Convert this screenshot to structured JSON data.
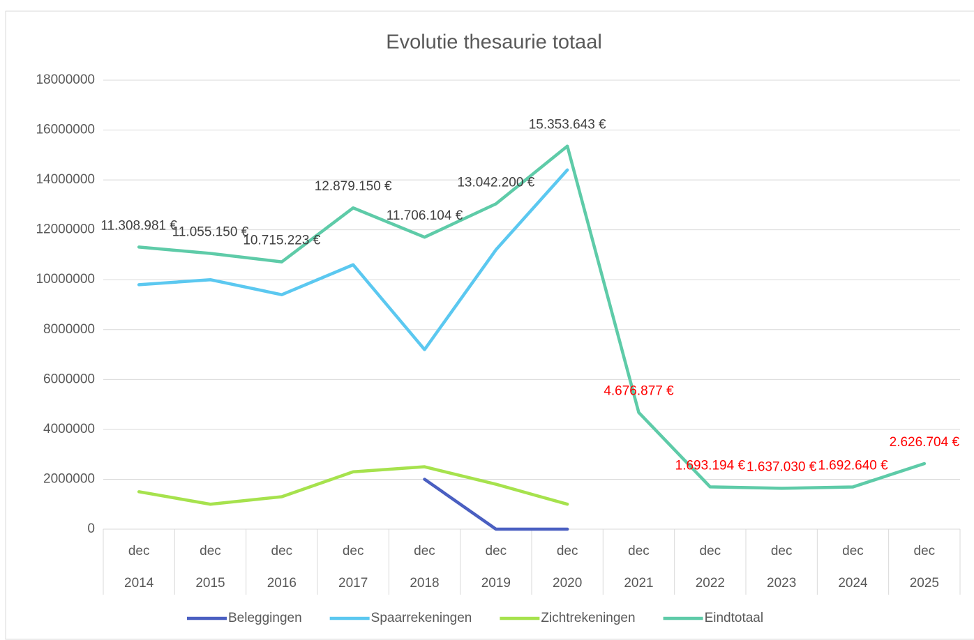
{
  "chart_data": {
    "type": "line",
    "title": "Evolutie thesaurie totaal",
    "categories": [
      [
        "dec",
        "2014"
      ],
      [
        "dec",
        "2015"
      ],
      [
        "dec",
        "2016"
      ],
      [
        "dec",
        "2017"
      ],
      [
        "dec",
        "2018"
      ],
      [
        "dec",
        "2019"
      ],
      [
        "dec",
        "2020"
      ],
      [
        "dec",
        "2021"
      ],
      [
        "dec",
        "2022"
      ],
      [
        "dec",
        "2023"
      ],
      [
        "dec",
        "2024"
      ],
      [
        "dec",
        "2025"
      ]
    ],
    "series": [
      {
        "name": "Beleggingen",
        "color": "#4a5fc1",
        "values": [
          null,
          null,
          null,
          null,
          2000000,
          0,
          0,
          null,
          null,
          null,
          null,
          null
        ]
      },
      {
        "name": "Spaarrekeningen",
        "color": "#5bc8f0",
        "values": [
          9800000,
          10000000,
          9400000,
          10600000,
          7200000,
          11200000,
          14400000,
          null,
          null,
          null,
          null,
          null
        ]
      },
      {
        "name": "Zichtrekeningen",
        "color": "#a6e24d",
        "values": [
          1500000,
          1000000,
          1300000,
          2300000,
          2500000,
          1800000,
          1000000,
          null,
          null,
          null,
          null,
          null
        ]
      },
      {
        "name": "Eindtotaal",
        "color": "#5ecba8",
        "values": [
          11308981,
          11055150,
          10715223,
          12879150,
          11706104,
          13042200,
          15353643,
          4676877,
          1693194,
          1637030,
          1692640,
          2626704
        ],
        "value_labels": [
          "11.308.981 €",
          "11.055.150 €",
          "10.715.223 €",
          "12.879.150 €",
          "11.706.104 €",
          "13.042.200 €",
          "15.353.643 €",
          "4.676.877 €",
          "1.693.194 €",
          "1.637.030 €",
          "1.692.640 €",
          "2.626.704 €"
        ],
        "value_label_colors": [
          "#404040",
          "#404040",
          "#404040",
          "#404040",
          "#404040",
          "#404040",
          "#404040",
          "#ff0000",
          "#ff0000",
          "#ff0000",
          "#ff0000",
          "#ff0000"
        ]
      }
    ],
    "ylim": [
      0,
      18000000
    ],
    "yticks": [
      0,
      2000000,
      4000000,
      6000000,
      8000000,
      10000000,
      12000000,
      14000000,
      16000000,
      18000000
    ],
    "grid": true,
    "legend": "bottom"
  }
}
